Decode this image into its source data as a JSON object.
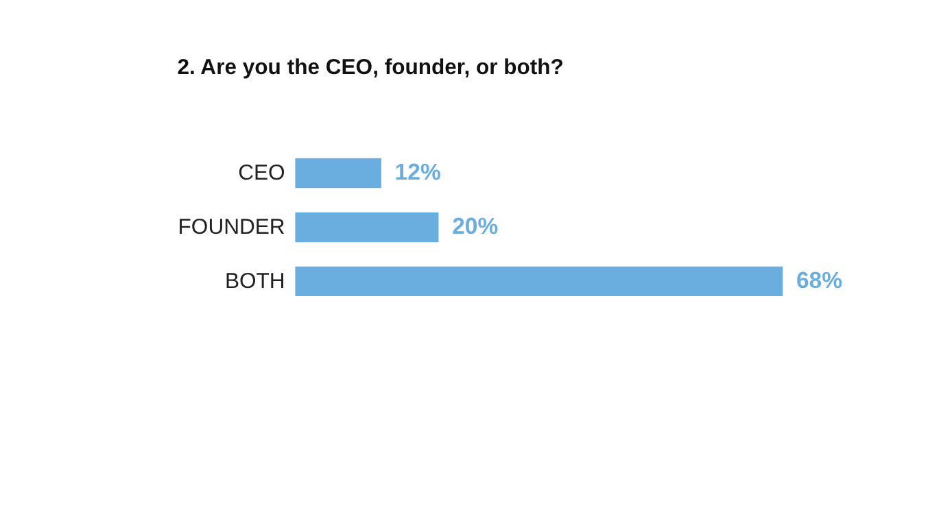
{
  "chart_data": {
    "type": "bar",
    "orientation": "horizontal",
    "title": "2. Are you the CEO, founder, or both?",
    "categories": [
      "CEO",
      "FOUNDER",
      "BOTH"
    ],
    "values": [
      12,
      20,
      68
    ],
    "value_labels": [
      "12%",
      "20%",
      "68%"
    ],
    "color": "#6aaee0",
    "grid": false
  }
}
